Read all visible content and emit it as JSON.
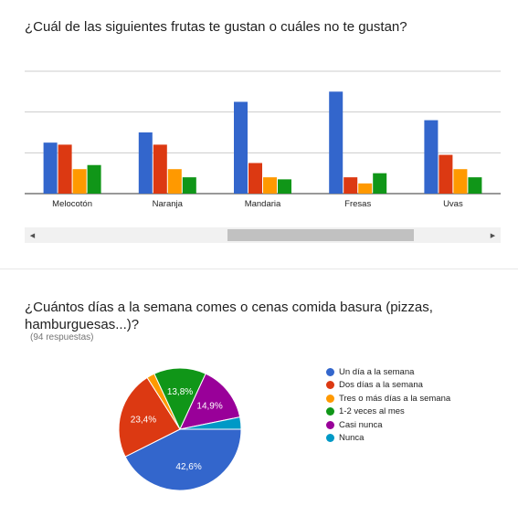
{
  "q1": {
    "title": "¿Cuál de las siguientes frutas te gustan o cuáles no te gustan?"
  },
  "q2": {
    "title": "¿Cuántos días a la semana comes o cenas comida basura (pizzas, hamburguesas...)?",
    "responses": "(94 respuestas)"
  },
  "scrollbar": {
    "left_arrow": "◀",
    "right_arrow": "▶"
  },
  "chart_data": [
    {
      "type": "bar",
      "categories": [
        "Melocotón",
        "Naranja",
        "Mandaria",
        "Fresas",
        "Uvas"
      ],
      "series": [
        {
          "values": [
            25,
            30,
            45,
            50,
            36
          ],
          "color": "#3366cc"
        },
        {
          "values": [
            24,
            24,
            15,
            8,
            19
          ],
          "color": "#dc3912"
        },
        {
          "values": [
            12,
            12,
            8,
            5,
            12
          ],
          "color": "#ff9900"
        },
        {
          "values": [
            14,
            8,
            7,
            10,
            8
          ],
          "color": "#109618"
        }
      ],
      "ylim": [
        0,
        60
      ],
      "grid": true,
      "horizontal_scroll": true
    },
    {
      "type": "pie",
      "slices": [
        {
          "label": "Un día a la semana",
          "value": 42.6,
          "display": "42,6%",
          "color": "#3366cc"
        },
        {
          "label": "Dos días a la semana",
          "value": 23.4,
          "display": "23,4%",
          "color": "#dc3912"
        },
        {
          "label": "Tres o más días a la semana",
          "value": 2.1,
          "display": "",
          "color": "#ff9900"
        },
        {
          "label": "1-2 veces al mes",
          "value": 13.8,
          "display": "13,8%",
          "color": "#109618"
        },
        {
          "label": "Casi nunca",
          "value": 14.9,
          "display": "14,9%",
          "color": "#990099"
        },
        {
          "label": "Nunca",
          "value": 3.2,
          "display": "",
          "color": "#0099c6"
        }
      ],
      "legend_position": "right"
    }
  ]
}
